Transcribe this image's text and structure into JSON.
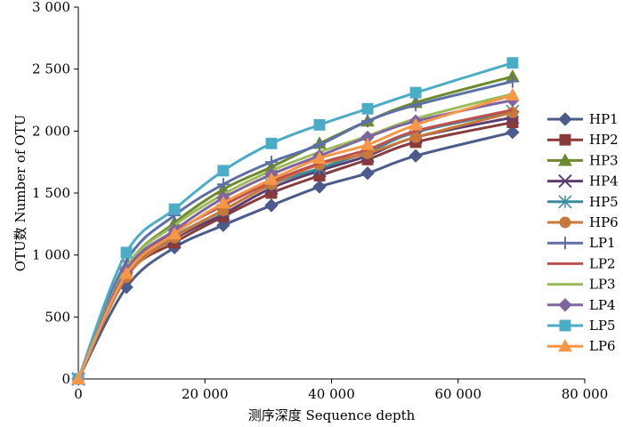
{
  "chart_data": {
    "type": "line",
    "title": "",
    "xlabel": "测序深度 Sequence depth",
    "ylabel": "OTU数 Number of OTU",
    "xlim": [
      0,
      80000
    ],
    "ylim": [
      0,
      3000
    ],
    "xticks": [
      0,
      20000,
      40000,
      60000,
      80000
    ],
    "xtick_labels": [
      "0",
      "20 000",
      "40 000",
      "60 000",
      "80 000"
    ],
    "yticks": [
      0,
      500,
      1000,
      1500,
      2000,
      2500,
      3000
    ],
    "ytick_labels": [
      "0",
      "500",
      "1 000",
      "1 500",
      "2 000",
      "2 500",
      "3 000"
    ],
    "grid": false,
    "legend_position": "right",
    "x": [
      0,
      7600,
      15200,
      22900,
      30500,
      38100,
      45700,
      53300,
      68600
    ],
    "series": [
      {
        "name": "HP1",
        "color": "#4a5b8c",
        "marker": "diamond",
        "values": [
          0,
          740,
          1060,
          1240,
          1400,
          1550,
          1660,
          1800,
          1990
        ]
      },
      {
        "name": "HP2",
        "color": "#8b3a3a",
        "marker": "square",
        "values": [
          0,
          830,
          1100,
          1310,
          1500,
          1640,
          1770,
          1910,
          2070
        ]
      },
      {
        "name": "HP3",
        "color": "#6d8a2e",
        "marker": "triangle",
        "values": [
          0,
          900,
          1260,
          1530,
          1710,
          1900,
          2080,
          2230,
          2440
        ]
      },
      {
        "name": "HP4",
        "color": "#5c3d6e",
        "marker": "x",
        "values": [
          0,
          840,
          1130,
          1330,
          1540,
          1680,
          1800,
          1950,
          2110
        ]
      },
      {
        "name": "HP5",
        "color": "#3a8ba0",
        "marker": "star",
        "values": [
          0,
          860,
          1150,
          1360,
          1570,
          1700,
          1830,
          1990,
          2160
        ]
      },
      {
        "name": "HP6",
        "color": "#c8783a",
        "marker": "circle",
        "values": [
          0,
          820,
          1140,
          1360,
          1570,
          1730,
          1820,
          1950,
          2150
        ]
      },
      {
        "name": "LP1",
        "color": "#5b6fa8",
        "marker": "plus",
        "values": [
          0,
          950,
          1320,
          1570,
          1750,
          1890,
          2080,
          2210,
          2400
        ]
      },
      {
        "name": "LP2",
        "color": "#c0504d",
        "marker": "none",
        "values": [
          0,
          860,
          1180,
          1400,
          1590,
          1740,
          1850,
          2000,
          2170
        ]
      },
      {
        "name": "LP3",
        "color": "#9bbb59",
        "marker": "none",
        "values": [
          0,
          900,
          1240,
          1490,
          1680,
          1830,
          1960,
          2100,
          2300
        ]
      },
      {
        "name": "LP4",
        "color": "#8064a2",
        "marker": "diamond",
        "values": [
          0,
          880,
          1200,
          1460,
          1650,
          1800,
          1950,
          2080,
          2250
        ]
      },
      {
        "name": "LP5",
        "color": "#4bacc6",
        "marker": "square",
        "values": [
          0,
          1020,
          1370,
          1680,
          1900,
          2050,
          2180,
          2310,
          2550
        ]
      },
      {
        "name": "LP6",
        "color": "#f79646",
        "marker": "triangle",
        "values": [
          0,
          850,
          1170,
          1420,
          1610,
          1780,
          1890,
          2050,
          2290
        ]
      }
    ]
  }
}
